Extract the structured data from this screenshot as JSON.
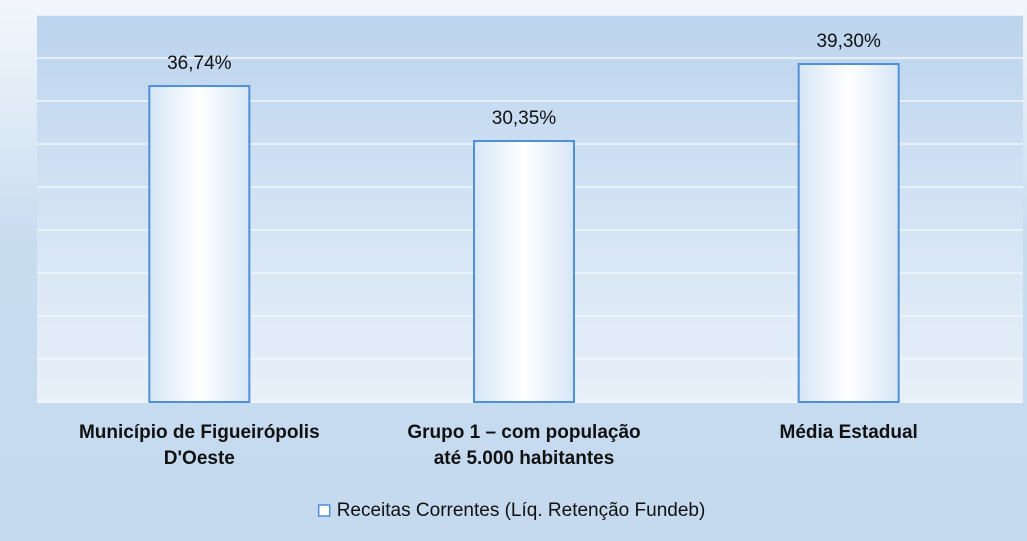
{
  "chart_data": {
    "type": "bar",
    "categories": [
      [
        "Município de Figueirópolis",
        "D'Oeste"
      ],
      [
        "Grupo 1 – com população",
        "até 5.000 habitantes"
      ],
      [
        "Média Estadual"
      ]
    ],
    "series": [
      {
        "name": "Receitas Correntes (Líq. Retenção Fundeb)",
        "color": "#4f8fd6",
        "values": [
          36.74,
          30.35,
          39.3
        ],
        "value_labels": [
          "36,74%",
          "30,35%",
          "39,30%"
        ]
      }
    ],
    "ylim": [
      0,
      45
    ],
    "yticks": [
      0,
      5,
      10,
      15,
      20,
      25,
      30,
      35,
      40,
      45
    ],
    "grid": true,
    "legend": "bottom"
  }
}
